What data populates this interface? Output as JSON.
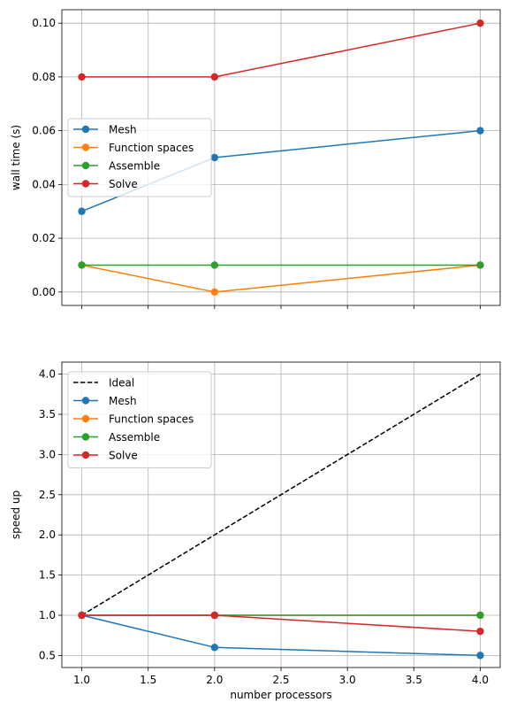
{
  "chart_data": [
    {
      "type": "line",
      "title": "",
      "xlabel": "",
      "ylabel": "wall time (s)",
      "x": [
        1,
        2,
        4
      ],
      "xlim": [
        0.85,
        4.15
      ],
      "ylim": [
        -0.005,
        0.105
      ],
      "xticks": [
        1.0,
        1.5,
        2.0,
        2.5,
        3.0,
        3.5,
        4.0
      ],
      "yticks": [
        "0.00",
        "0.02",
        "0.04",
        "0.06",
        "0.08",
        "0.10"
      ],
      "show_xtick_labels": false,
      "grid": true,
      "legend": "center-left",
      "series": [
        {
          "name": "Mesh",
          "color": "#1f77b4",
          "style": "solid",
          "marker": "circle",
          "x": [
            1,
            2,
            4
          ],
          "values": [
            0.03,
            0.05,
            0.06
          ]
        },
        {
          "name": "Function spaces",
          "color": "#ff7f0e",
          "style": "solid",
          "marker": "circle",
          "x": [
            1,
            2,
            4
          ],
          "values": [
            0.01,
            0.0,
            0.01
          ]
        },
        {
          "name": "Assemble",
          "color": "#2ca02c",
          "style": "solid",
          "marker": "circle",
          "x": [
            1,
            2,
            4
          ],
          "values": [
            0.01,
            0.01,
            0.01
          ]
        },
        {
          "name": "Solve",
          "color": "#d62728",
          "style": "solid",
          "marker": "circle",
          "x": [
            1,
            2,
            4
          ],
          "values": [
            0.08,
            0.08,
            0.1
          ]
        }
      ]
    },
    {
      "type": "line",
      "title": "",
      "xlabel": "number processors",
      "ylabel": "speed up",
      "x": [
        1,
        2,
        4
      ],
      "xlim": [
        0.85,
        4.15
      ],
      "ylim": [
        0.35,
        4.15
      ],
      "xticks": [
        "1.0",
        "1.5",
        "2.0",
        "2.5",
        "3.0",
        "3.5",
        "4.0"
      ],
      "yticks": [
        "0.5",
        "1.0",
        "1.5",
        "2.0",
        "2.5",
        "3.0",
        "3.5",
        "4.0"
      ],
      "show_xtick_labels": true,
      "grid": true,
      "legend": "top-left",
      "series": [
        {
          "name": "Ideal",
          "color": "#000000",
          "style": "dashed",
          "marker": "none",
          "x": [
            1,
            4
          ],
          "values": [
            1.0,
            4.0
          ]
        },
        {
          "name": "Mesh",
          "color": "#1f77b4",
          "style": "solid",
          "marker": "circle",
          "x": [
            1,
            2,
            4
          ],
          "values": [
            1.0,
            0.6,
            0.5
          ]
        },
        {
          "name": "Function spaces",
          "color": "#ff7f0e",
          "style": "solid",
          "marker": "circle",
          "x": [
            1,
            2,
            4
          ],
          "values": [
            1.0,
            1.0,
            1.0
          ]
        },
        {
          "name": "Assemble",
          "color": "#2ca02c",
          "style": "solid",
          "marker": "circle",
          "x": [
            1,
            2,
            4
          ],
          "values": [
            1.0,
            1.0,
            1.0
          ]
        },
        {
          "name": "Solve",
          "color": "#d62728",
          "style": "solid",
          "marker": "circle",
          "x": [
            1,
            2,
            4
          ],
          "values": [
            1.0,
            1.0,
            0.8
          ]
        }
      ]
    }
  ]
}
